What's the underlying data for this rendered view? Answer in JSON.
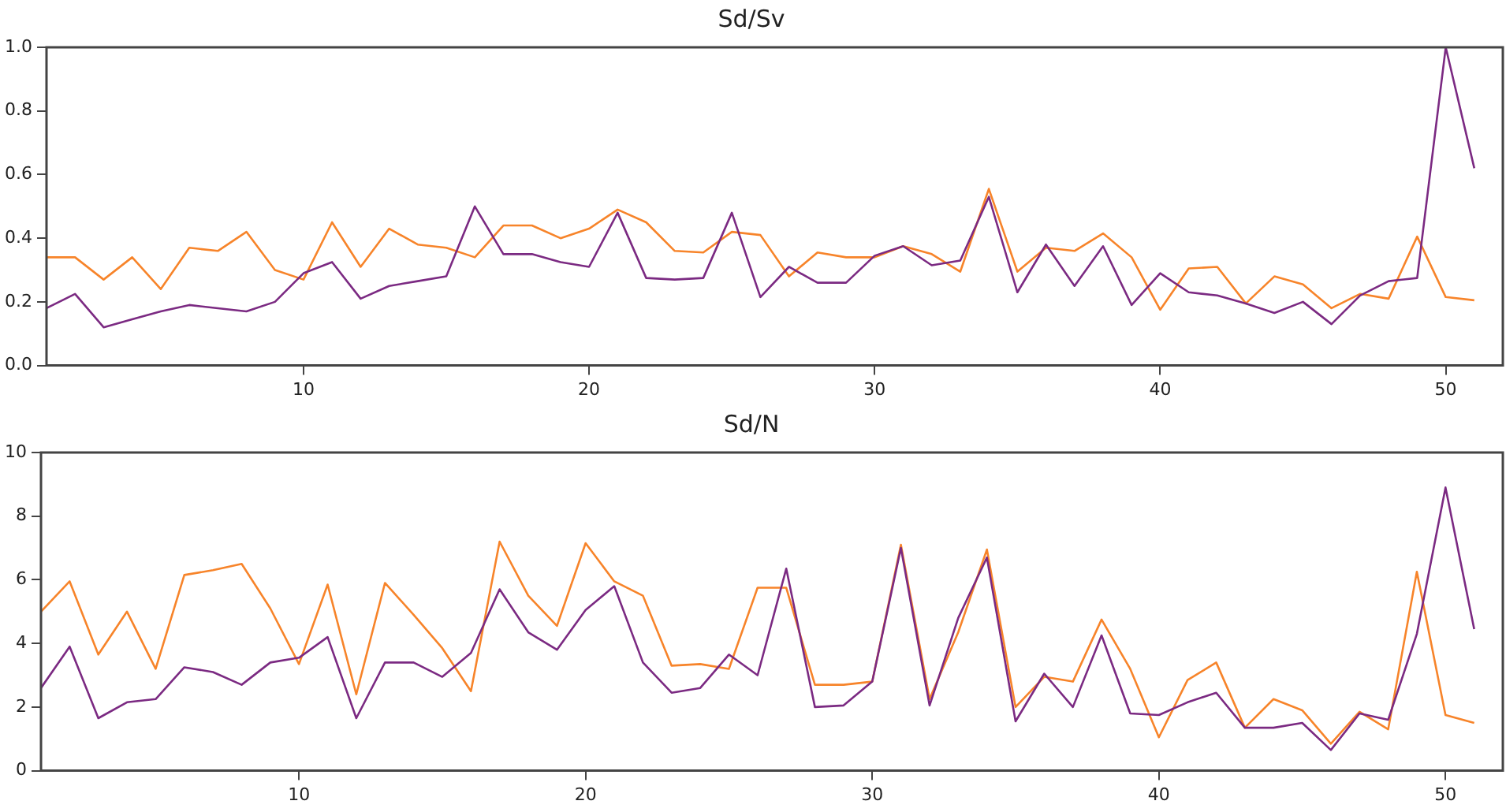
{
  "chart_data": [
    {
      "type": "line",
      "title": "Sd/Sv",
      "x": [
        1,
        2,
        3,
        4,
        5,
        6,
        7,
        8,
        9,
        10,
        11,
        12,
        13,
        14,
        15,
        16,
        17,
        18,
        19,
        20,
        21,
        22,
        23,
        24,
        25,
        26,
        27,
        28,
        29,
        30,
        31,
        32,
        33,
        34,
        35,
        36,
        37,
        38,
        39,
        40,
        41,
        42,
        43,
        44,
        45,
        46,
        47,
        48,
        49,
        50,
        51
      ],
      "series": [
        {
          "color": "#7b2a82",
          "values": [
            0.18,
            0.225,
            0.12,
            0.145,
            0.17,
            0.19,
            0.18,
            0.17,
            0.2,
            0.29,
            0.325,
            0.21,
            0.25,
            0.265,
            0.28,
            0.5,
            0.35,
            0.35,
            0.325,
            0.31,
            0.48,
            0.275,
            0.27,
            0.275,
            0.48,
            0.215,
            0.31,
            0.26,
            0.26,
            0.345,
            0.375,
            0.315,
            0.33,
            0.53,
            0.23,
            0.38,
            0.25,
            0.375,
            0.19,
            0.29,
            0.23,
            0.22,
            0.195,
            0.165,
            0.2,
            0.13,
            0.22,
            0.265,
            0.275,
            1.0,
            0.62
          ]
        },
        {
          "color": "#f7842a",
          "values": [
            0.34,
            0.34,
            0.27,
            0.34,
            0.24,
            0.37,
            0.36,
            0.42,
            0.3,
            0.27,
            0.45,
            0.31,
            0.43,
            0.38,
            0.37,
            0.34,
            0.44,
            0.44,
            0.4,
            0.43,
            0.49,
            0.45,
            0.36,
            0.355,
            0.42,
            0.41,
            0.28,
            0.355,
            0.34,
            0.34,
            0.375,
            0.35,
            0.295,
            0.555,
            0.295,
            0.37,
            0.36,
            0.415,
            0.34,
            0.175,
            0.305,
            0.31,
            0.195,
            0.28,
            0.255,
            0.18,
            0.225,
            0.21,
            0.405,
            0.215,
            0.205
          ]
        }
      ],
      "xlim": [
        1,
        52
      ],
      "xticks": [
        10,
        20,
        30,
        40,
        50
      ],
      "ylim": [
        0,
        1
      ],
      "yticks": [
        {
          "value": 0,
          "label": "0.0"
        },
        0.2,
        0.4,
        0.6,
        0.8,
        {
          "value": 1,
          "label": "1.0"
        }
      ],
      "grid": false,
      "legend": false
    },
    {
      "type": "line",
      "title": "Sd/N",
      "x": [
        1,
        2,
        3,
        4,
        5,
        6,
        7,
        8,
        9,
        10,
        11,
        12,
        13,
        14,
        15,
        16,
        17,
        18,
        19,
        20,
        21,
        22,
        23,
        24,
        25,
        26,
        27,
        28,
        29,
        30,
        31,
        32,
        33,
        34,
        35,
        36,
        37,
        38,
        39,
        40,
        41,
        42,
        43,
        44,
        45,
        46,
        47,
        48,
        49,
        50,
        51
      ],
      "series": [
        {
          "color": "#7b2a82",
          "values": [
            2.6,
            3.9,
            1.65,
            2.15,
            2.25,
            3.25,
            3.1,
            2.7,
            3.4,
            3.55,
            4.2,
            1.65,
            3.4,
            3.4,
            2.95,
            3.7,
            5.7,
            4.35,
            3.8,
            5.05,
            5.8,
            3.4,
            2.45,
            2.6,
            3.65,
            3.0,
            6.35,
            2.0,
            2.05,
            2.8,
            7.0,
            2.05,
            4.8,
            6.7,
            1.55,
            3.05,
            2.0,
            4.25,
            1.8,
            1.75,
            2.15,
            2.45,
            1.35,
            1.35,
            1.5,
            0.65,
            1.8,
            1.6,
            4.3,
            8.9,
            4.45
          ]
        },
        {
          "color": "#f7842a",
          "values": [
            5.0,
            5.95,
            3.65,
            5.0,
            3.2,
            6.15,
            6.3,
            6.5,
            5.1,
            3.35,
            5.85,
            2.4,
            5.9,
            4.9,
            3.85,
            2.5,
            7.2,
            5.5,
            4.55,
            7.15,
            5.95,
            5.5,
            3.3,
            3.35,
            3.2,
            5.75,
            5.75,
            2.7,
            2.7,
            2.8,
            7.1,
            2.25,
            4.35,
            6.95,
            2.0,
            2.95,
            2.8,
            4.75,
            3.2,
            1.05,
            2.85,
            3.4,
            1.35,
            2.25,
            1.9,
            0.85,
            1.85,
            1.3,
            6.25,
            1.75,
            1.5
          ]
        }
      ],
      "xlim": [
        1,
        52
      ],
      "xticks": [
        10,
        20,
        30,
        40,
        50
      ],
      "ylim": [
        0,
        10
      ],
      "yticks": [
        0,
        2,
        4,
        6,
        8,
        10
      ],
      "grid": false,
      "legend": false
    }
  ]
}
